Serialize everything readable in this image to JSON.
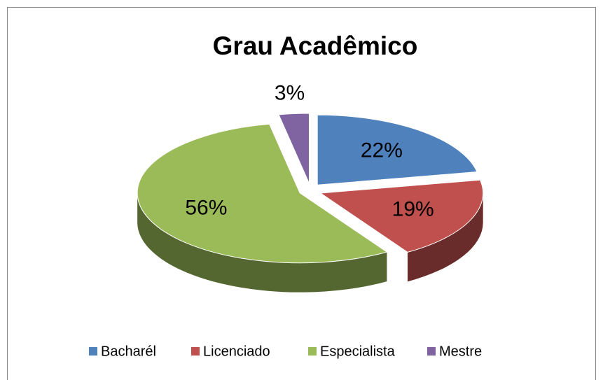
{
  "chart_data": {
    "type": "pie",
    "title": "Grau Acadêmico",
    "categories": [
      "Bacharél",
      "Licenciado",
      "Especialista",
      "Mestre"
    ],
    "values": [
      22,
      19,
      56,
      3
    ],
    "value_labels": [
      "22%",
      "19%",
      "56%",
      "3%"
    ],
    "colors": [
      "#4f81bd",
      "#c0504d",
      "#9bbb59",
      "#8064a2"
    ],
    "legend": "bottom"
  }
}
